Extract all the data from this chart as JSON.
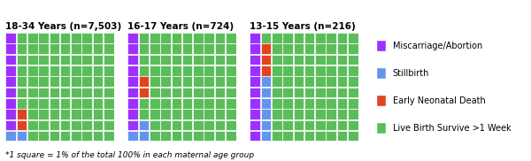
{
  "groups": [
    {
      "title": "18-34 Years (n=7,503)",
      "grid_size": 10,
      "layout": [
        [
          1,
          0,
          0,
          0,
          0,
          0,
          0,
          0,
          0,
          0
        ],
        [
          1,
          0,
          0,
          0,
          0,
          0,
          0,
          0,
          0,
          0
        ],
        [
          1,
          0,
          0,
          0,
          0,
          0,
          0,
          0,
          0,
          0
        ],
        [
          1,
          0,
          0,
          0,
          0,
          0,
          0,
          0,
          0,
          0
        ],
        [
          1,
          0,
          0,
          0,
          0,
          0,
          0,
          0,
          0,
          0
        ],
        [
          1,
          0,
          0,
          0,
          0,
          0,
          0,
          0,
          0,
          0
        ],
        [
          1,
          0,
          0,
          0,
          0,
          0,
          0,
          0,
          0,
          0
        ],
        [
          1,
          2,
          0,
          0,
          0,
          0,
          0,
          0,
          0,
          0
        ],
        [
          1,
          2,
          0,
          0,
          0,
          0,
          0,
          0,
          0,
          0
        ],
        [
          3,
          3,
          0,
          0,
          0,
          0,
          0,
          0,
          0,
          0
        ]
      ]
    },
    {
      "title": "16-17 Years (n=724)",
      "grid_size": 10,
      "layout": [
        [
          1,
          0,
          0,
          0,
          0,
          0,
          0,
          0,
          0,
          0
        ],
        [
          1,
          0,
          0,
          0,
          0,
          0,
          0,
          0,
          0,
          0
        ],
        [
          1,
          0,
          0,
          0,
          0,
          0,
          0,
          0,
          0,
          0
        ],
        [
          1,
          0,
          0,
          0,
          0,
          0,
          0,
          0,
          0,
          0
        ],
        [
          1,
          2,
          0,
          0,
          0,
          0,
          0,
          0,
          0,
          0
        ],
        [
          1,
          2,
          0,
          0,
          0,
          0,
          0,
          0,
          0,
          0
        ],
        [
          1,
          0,
          0,
          0,
          0,
          0,
          0,
          0,
          0,
          0
        ],
        [
          1,
          0,
          0,
          0,
          0,
          0,
          0,
          0,
          0,
          0
        ],
        [
          1,
          3,
          0,
          0,
          0,
          0,
          0,
          0,
          0,
          0
        ],
        [
          3,
          3,
          0,
          0,
          0,
          0,
          0,
          0,
          0,
          0
        ]
      ]
    },
    {
      "title": "13-15 Years (n=216)",
      "grid_size": 10,
      "layout": [
        [
          1,
          0,
          0,
          0,
          0,
          0,
          0,
          0,
          0,
          0
        ],
        [
          1,
          2,
          0,
          0,
          0,
          0,
          0,
          0,
          0,
          0
        ],
        [
          1,
          2,
          0,
          0,
          0,
          0,
          0,
          0,
          0,
          0
        ],
        [
          1,
          2,
          0,
          0,
          0,
          0,
          0,
          0,
          0,
          0
        ],
        [
          1,
          3,
          0,
          0,
          0,
          0,
          0,
          0,
          0,
          0
        ],
        [
          1,
          3,
          0,
          0,
          0,
          0,
          0,
          0,
          0,
          0
        ],
        [
          1,
          3,
          0,
          0,
          0,
          0,
          0,
          0,
          0,
          0
        ],
        [
          1,
          3,
          0,
          0,
          0,
          0,
          0,
          0,
          0,
          0
        ],
        [
          1,
          3,
          0,
          0,
          0,
          0,
          0,
          0,
          0,
          0
        ],
        [
          1,
          3,
          0,
          0,
          0,
          0,
          0,
          0,
          0,
          0
        ]
      ]
    }
  ],
  "colors": {
    "0": "#5BBD5A",
    "1": "#9B30FF",
    "2": "#E2431E",
    "3": "#6495ED"
  },
  "legend_labels": [
    "Miscarriage/Abortion",
    "Stillbirth",
    "Early Neonatal Death",
    "Live Birth Survive >1 Week"
  ],
  "legend_colors": [
    "#9B30FF",
    "#6495ED",
    "#E2431E",
    "#5BBD5A"
  ],
  "footnote": "*1 square = 1% of the total 100% in each maternal age group",
  "background_color": "#ffffff",
  "title_fontsize": 7.5,
  "legend_fontsize": 7.0,
  "footnote_fontsize": 6.5
}
